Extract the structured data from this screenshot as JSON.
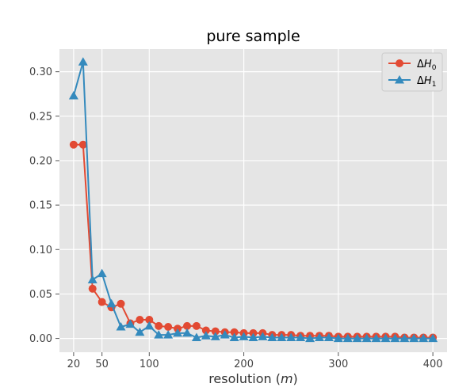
{
  "chart_data": {
    "type": "line",
    "title": "pure sample",
    "xlabel": "resolution (m)",
    "ylabel": "",
    "xlim": [
      5,
      415
    ],
    "ylim": [
      -0.0155,
      0.3255
    ],
    "xticks": [
      20,
      50,
      100,
      200,
      300,
      400
    ],
    "xtick_labels": [
      "20",
      "50",
      "100",
      "200",
      "300",
      "400"
    ],
    "yticks": [
      0.0,
      0.05,
      0.1,
      0.15,
      0.2,
      0.25,
      0.3
    ],
    "ytick_labels": [
      "0.00",
      "0.05",
      "0.10",
      "0.15",
      "0.20",
      "0.25",
      "0.30"
    ],
    "extra_xtick_labels": [
      {
        "value": 20,
        "label": "20"
      }
    ],
    "grid": true,
    "background": "#e5e5e5",
    "legend_position": "top-right",
    "x": [
      20,
      30,
      40,
      50,
      60,
      70,
      80,
      90,
      100,
      110,
      120,
      130,
      140,
      150,
      160,
      170,
      180,
      190,
      200,
      210,
      220,
      230,
      240,
      250,
      260,
      270,
      280,
      290,
      300,
      310,
      320,
      330,
      340,
      350,
      360,
      370,
      380,
      390,
      400
    ],
    "series": [
      {
        "name": "ΔH0",
        "color": "#e24a33",
        "marker": "circle",
        "values": [
          0.218,
          0.218,
          0.056,
          0.041,
          0.035,
          0.039,
          0.017,
          0.021,
          0.021,
          0.014,
          0.013,
          0.011,
          0.014,
          0.014,
          0.009,
          0.008,
          0.007,
          0.007,
          0.006,
          0.006,
          0.006,
          0.004,
          0.004,
          0.004,
          0.003,
          0.003,
          0.003,
          0.003,
          0.002,
          0.002,
          0.002,
          0.002,
          0.002,
          0.002,
          0.002,
          0.001,
          0.001,
          0.001,
          0.001
        ]
      },
      {
        "name": "ΔH1",
        "color": "#348abd",
        "marker": "triangle",
        "values": [
          0.273,
          0.311,
          0.066,
          0.073,
          0.039,
          0.013,
          0.016,
          0.007,
          0.014,
          0.004,
          0.004,
          0.006,
          0.006,
          0.001,
          0.003,
          0.002,
          0.004,
          0.001,
          0.002,
          0.001,
          0.002,
          0.001,
          0.001,
          0.001,
          0.001,
          0.0,
          0.001,
          0.001,
          0.0,
          0.0,
          0.0,
          0.0,
          0.0,
          0.0,
          0.0,
          0.0,
          0.0,
          0.0,
          0.0
        ]
      }
    ]
  }
}
